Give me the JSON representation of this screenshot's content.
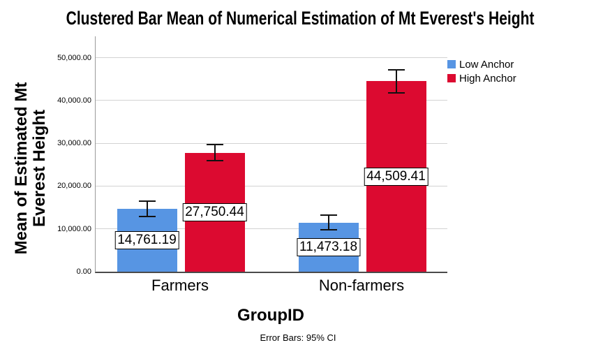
{
  "chart_data": {
    "type": "bar",
    "variant": "clustered-with-error-bars",
    "title": "Clustered Bar Mean of Numerical Estimation of Mt Everest's Height",
    "xlabel": "GroupID",
    "ylabel": "Mean of Estimated Mt Everest Height",
    "ylabel_lines": [
      "Mean of Estimated Mt",
      "Everest Height"
    ],
    "footnote": "Error Bars: 95% CI",
    "categories": [
      "Farmers",
      "Non-farmers"
    ],
    "series": [
      {
        "name": "Low Anchor",
        "color": "#5795E3",
        "values": [
          14761.19,
          11473.18
        ],
        "value_labels": [
          "14,761.19",
          "11,473.18"
        ],
        "ci_halfwidth": [
          1800,
          1670
        ]
      },
      {
        "name": "High Anchor",
        "color": "#DC0A30",
        "values": [
          27750.44,
          44509.41
        ],
        "value_labels": [
          "27,750.44",
          "44,509.41"
        ],
        "ci_halfwidth": [
          1880,
          2680
        ]
      }
    ],
    "yticks": [
      0,
      10000,
      20000,
      30000,
      40000,
      50000
    ],
    "ytick_labels": [
      "0.00",
      "10,000.00",
      "20,000.00",
      "30,000.00",
      "40,000.00",
      "50,000.00"
    ],
    "ylim": [
      0,
      55000
    ],
    "grid": "horizontal",
    "legend_position": "top-right",
    "axis_color": "#9a9a9a",
    "baseline_color": "#4a4a4a",
    "gridline_color": "#d2d2d2"
  }
}
